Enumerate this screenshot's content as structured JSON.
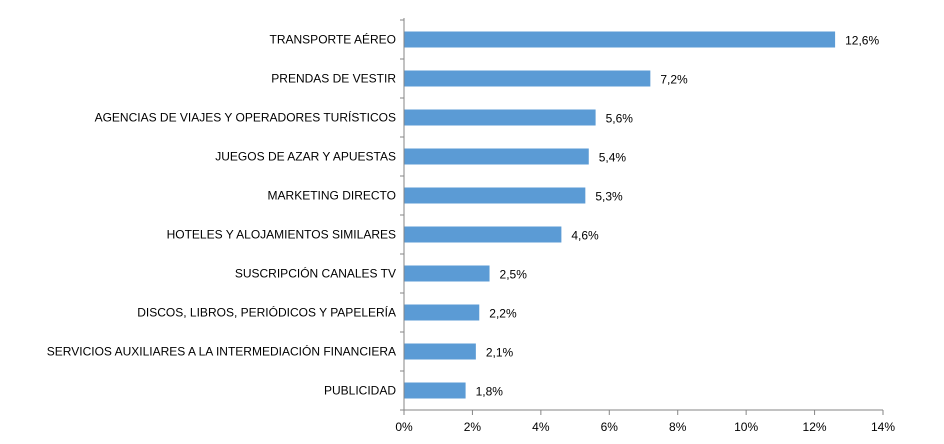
{
  "chart_data": {
    "type": "bar",
    "orientation": "horizontal",
    "categories": [
      "TRANSPORTE AÉREO",
      "PRENDAS DE VESTIR",
      "AGENCIAS DE VIAJES Y OPERADORES TURÍSTICOS",
      "JUEGOS DE AZAR Y APUESTAS",
      "MARKETING DIRECTO",
      "HOTELES  Y ALOJAMIENTOS SIMILARES",
      "SUSCRIPCIÓN CANALES TV",
      "DISCOS, LIBROS, PERIÓDICOS Y PAPELERÍA",
      "SERVICIOS AUXILIARES A LA INTERMEDIACIÓN FINANCIERA",
      "PUBLICIDAD"
    ],
    "values": [
      12.6,
      7.2,
      5.6,
      5.4,
      5.3,
      4.6,
      2.5,
      2.2,
      2.1,
      1.8
    ],
    "value_labels": [
      "12,6%",
      "7,2%",
      "5,6%",
      "5,4%",
      "5,3%",
      "4,6%",
      "2,5%",
      "2,2%",
      "2,1%",
      "1,8%"
    ],
    "x_ticks": [
      0,
      2,
      4,
      6,
      8,
      10,
      12,
      14
    ],
    "x_tick_labels": [
      "0%",
      "2%",
      "4%",
      "6%",
      "8%",
      "10%",
      "12%",
      "14%"
    ],
    "xlim": [
      0,
      14
    ],
    "title": "",
    "xlabel": "",
    "ylabel": "",
    "grid": false,
    "legend": "none",
    "bar_color": "#5B9BD5",
    "axis_color": "#868686"
  }
}
